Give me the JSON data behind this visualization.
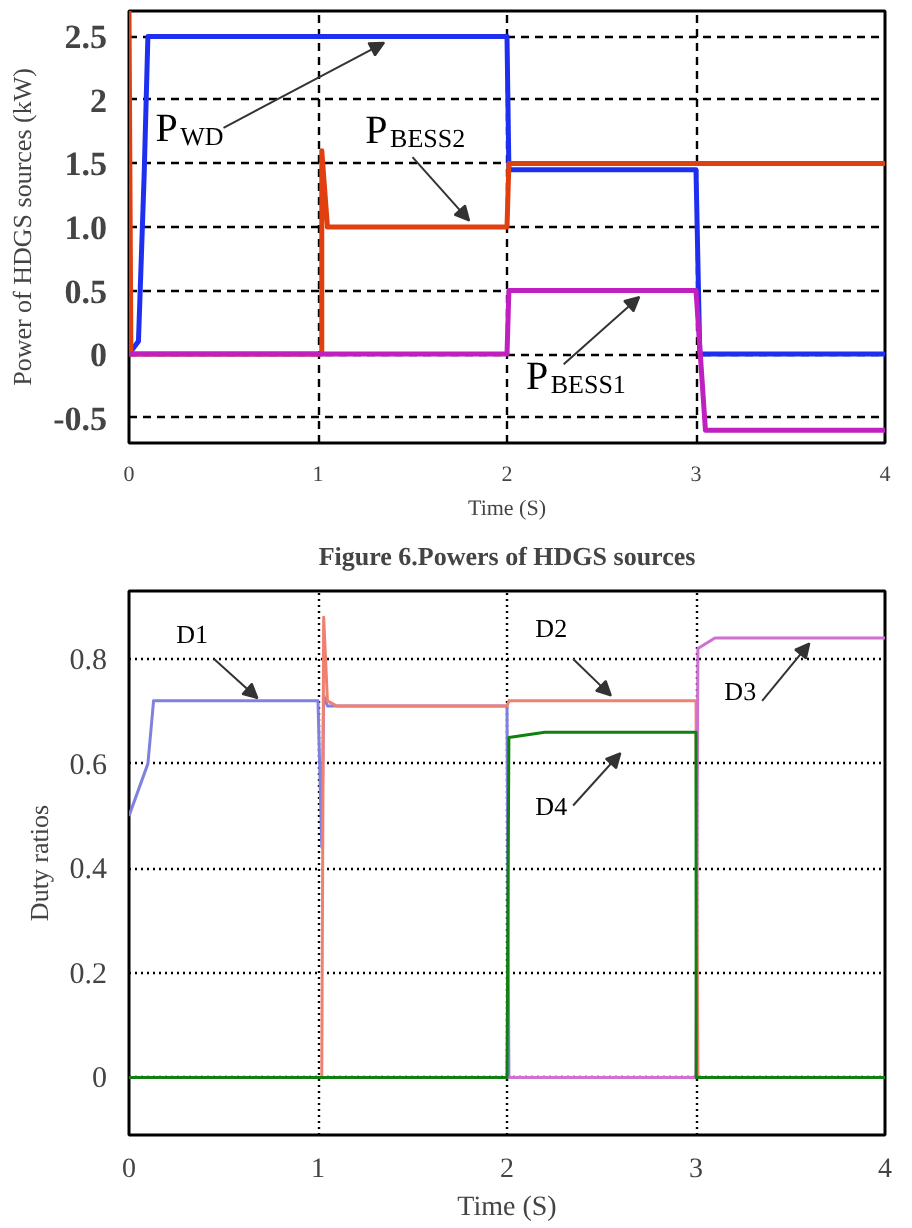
{
  "chart_data": [
    {
      "type": "line",
      "title": "Figure 6.Powers of HDGS sources",
      "xlabel": "Time (S)",
      "ylabel": "Power of HDGS sources (kW)",
      "xlim": [
        0,
        4
      ],
      "ylim": [
        -0.7,
        2.7
      ],
      "xticks": [
        0,
        1,
        2,
        3,
        4
      ],
      "yticks": [
        -0.5,
        0,
        0.5,
        {
          "value": 1,
          "label": "1.0"
        },
        1.5,
        2,
        2.5
      ],
      "grid": true,
      "series": [
        {
          "name": "P$_{WD}$",
          "color": "#1f2ff0",
          "x": [
            0,
            0.05,
            0.08,
            0.1,
            1,
            2,
            2.01,
            3,
            3.02,
            4
          ],
          "values": [
            0,
            0.1,
            1.4,
            2.5,
            2.5,
            2.5,
            1.45,
            1.45,
            0,
            0
          ]
        },
        {
          "name": "P$_{BESS2}$",
          "color": "#e04010",
          "x": [
            0,
            0.01,
            1.02,
            1.02,
            1.05,
            2,
            2.01,
            3,
            4
          ],
          "values": [
            2.7,
            0,
            0,
            1.6,
            1.0,
            1.0,
            1.5,
            1.5,
            1.5
          ]
        },
        {
          "name": "P$_{BESS1}$",
          "color": "#c020c0",
          "x": [
            0,
            2,
            2.01,
            3,
            3.05,
            4
          ],
          "values": [
            0,
            0,
            0.5,
            0.5,
            -0.6,
            -0.6
          ]
        }
      ]
    },
    {
      "type": "line",
      "xlabel": "Time (S)",
      "ylabel": "Duty ratios",
      "xlim": [
        0,
        4
      ],
      "ylim": [
        -0.11,
        0.93
      ],
      "xticks": [
        0,
        1,
        2,
        3,
        4
      ],
      "yticks": [
        0,
        0.2,
        0.4,
        0.6,
        0.8
      ],
      "grid": true,
      "series": [
        {
          "name": "D1",
          "color": "#8080e0",
          "x": [
            0,
            0.1,
            0.13,
            1,
            1.02,
            1.03,
            1.05,
            2,
            2.01,
            4
          ],
          "values": [
            0.5,
            0.6,
            0.72,
            0.72,
            0.44,
            0.73,
            0.71,
            0.71,
            0,
            0
          ]
        },
        {
          "name": "D2",
          "color": "#f08070",
          "x": [
            0,
            1.02,
            1.03,
            1.05,
            1.1,
            2,
            2.01,
            3,
            3.01,
            4
          ],
          "values": [
            0,
            0,
            0.88,
            0.72,
            0.71,
            0.71,
            0.72,
            0.72,
            0,
            0
          ]
        },
        {
          "name": "D3",
          "color": "#d070d0",
          "x": [
            2,
            3,
            3.01,
            3.1,
            4
          ],
          "values": [
            0,
            0,
            0.82,
            0.84,
            0.84
          ]
        },
        {
          "name": "D4",
          "color": "#108010",
          "x": [
            0,
            2,
            2.01,
            2.2,
            3,
            3.001,
            4
          ],
          "values": [
            0,
            0,
            0.65,
            0.66,
            0.66,
            0,
            0
          ]
        }
      ]
    }
  ]
}
